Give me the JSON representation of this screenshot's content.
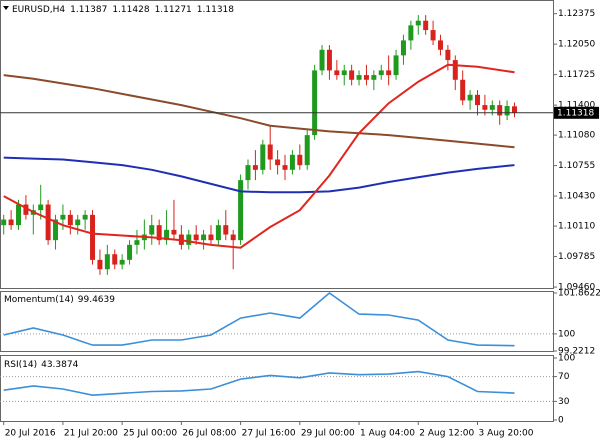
{
  "chart_data": [
    {
      "type": "candlestick",
      "symbol": "EURUSD,H4",
      "ohlc": [
        1.11387,
        1.11428,
        1.11271,
        1.11318
      ],
      "last_price": 1.11318,
      "up_color": "#1f9a1f",
      "down_color": "#d8231c",
      "xlim": [
        -0.5,
        74.2
      ],
      "ylim": [
        1.0945,
        1.1251
      ],
      "yticks": [
        {
          "value": 1.12375,
          "label": "1.12375"
        },
        {
          "value": 1.1205,
          "label": "1.12050"
        },
        {
          "value": 1.11725,
          "label": "1.11725"
        },
        {
          "value": 1.114,
          "label": "1.11400"
        },
        {
          "value": 1.1108,
          "label": "1.11080"
        },
        {
          "value": 1.10755,
          "label": "1.10755"
        },
        {
          "value": 1.1043,
          "label": "1.10430"
        },
        {
          "value": 1.1011,
          "label": "1.10110"
        },
        1.09785,
        {
          "value": 1.0946,
          "label": "1.09460"
        }
      ],
      "candles": {
        "open": [
          1.1012,
          1.1018,
          1.1012,
          1.1034,
          1.1023,
          1.1028,
          1.1034,
          1.0996,
          1.1018,
          1.1023,
          1.1012,
          1.1018,
          1.1023,
          1.0975,
          1.0965,
          1.0981,
          1.097,
          1.0975,
          1.0991,
          1.0996,
          1.1002,
          1.1012,
          1.0996,
          1.1007,
          1.1002,
          1.0991,
          1.1002,
          1.0996,
          1.1002,
          1.0996,
          1.1012,
          1.1002,
          1.0996,
          1.106,
          1.1076,
          1.1071,
          1.1098,
          1.1082,
          1.1076,
          1.1071,
          1.1087,
          1.1076,
          1.1108,
          1.1177,
          1.1199,
          1.1177,
          1.1172,
          1.1177,
          1.1167,
          1.1172,
          1.1167,
          1.1172,
          1.1177,
          1.1172,
          1.1193,
          1.1209,
          1.1225,
          1.123,
          1.122,
          1.1209,
          1.1199,
          1.1188,
          1.1167,
          1.1145,
          1.1151,
          1.114,
          1.1135,
          1.114,
          1.1129,
          1.11387
        ],
        "high": [
          1.1023,
          1.1028,
          1.1039,
          1.1044,
          1.1034,
          1.1055,
          1.1039,
          1.1023,
          1.1034,
          1.1028,
          1.1023,
          1.1028,
          1.1028,
          1.0986,
          1.0991,
          1.0986,
          1.0981,
          1.0996,
          1.1007,
          1.1018,
          1.1023,
          1.1018,
          1.1028,
          1.1039,
          1.1012,
          1.1007,
          1.1012,
          1.1007,
          1.1012,
          1.1018,
          1.1028,
          1.1007,
          1.1066,
          1.1082,
          1.1092,
          1.1103,
          1.1119,
          1.1092,
          1.1087,
          1.1092,
          1.1098,
          1.1113,
          1.1183,
          1.1204,
          1.1204,
          1.1188,
          1.1183,
          1.1183,
          1.1177,
          1.1183,
          1.1177,
          1.1183,
          1.1193,
          1.1199,
          1.1215,
          1.123,
          1.1236,
          1.1236,
          1.123,
          1.1215,
          1.1204,
          1.1193,
          1.1177,
          1.1156,
          1.1156,
          1.1151,
          1.1145,
          1.1145,
          1.1145,
          1.11428
        ],
        "low": [
          1.1002,
          1.1007,
          1.1007,
          1.1018,
          1.1002,
          1.1018,
          1.0991,
          1.0986,
          1.1007,
          1.1002,
          1.1002,
          1.1007,
          1.097,
          1.0959,
          1.0959,
          1.0965,
          1.0965,
          1.097,
          1.0981,
          1.0986,
          1.0991,
          1.0991,
          1.0991,
          1.0996,
          1.0986,
          1.0986,
          1.0991,
          1.0986,
          1.0991,
          1.0991,
          1.0996,
          1.0965,
          1.0991,
          1.105,
          1.106,
          1.1066,
          1.1071,
          1.1066,
          1.106,
          1.1066,
          1.1071,
          1.1071,
          1.1103,
          1.1172,
          1.1167,
          1.1167,
          1.1161,
          1.1161,
          1.1161,
          1.1161,
          1.1156,
          1.1167,
          1.1161,
          1.1167,
          1.1183,
          1.1199,
          1.1215,
          1.1215,
          1.1204,
          1.1193,
          1.1177,
          1.1156,
          1.114,
          1.1135,
          1.1129,
          1.1129,
          1.1129,
          1.1119,
          1.1124,
          1.11271
        ],
        "close": [
          1.1018,
          1.1012,
          1.1034,
          1.1023,
          1.1028,
          1.1034,
          1.0996,
          1.1018,
          1.1023,
          1.1012,
          1.1018,
          1.1023,
          1.0975,
          1.0965,
          1.0981,
          1.097,
          1.0975,
          1.0991,
          1.0996,
          1.1002,
          1.1012,
          1.0996,
          1.1007,
          1.1002,
          1.0991,
          1.1002,
          1.0996,
          1.1002,
          1.0996,
          1.1012,
          1.1002,
          1.0996,
          1.106,
          1.1076,
          1.1071,
          1.1098,
          1.1082,
          1.1076,
          1.1071,
          1.1087,
          1.1076,
          1.1108,
          1.1177,
          1.1199,
          1.1177,
          1.1172,
          1.1177,
          1.1167,
          1.1172,
          1.1167,
          1.1172,
          1.1177,
          1.1172,
          1.1193,
          1.1209,
          1.1225,
          1.123,
          1.122,
          1.1209,
          1.1199,
          1.1188,
          1.1167,
          1.1145,
          1.1151,
          1.114,
          1.1135,
          1.114,
          1.1129,
          1.1139,
          1.11318
        ]
      },
      "series": [
        {
          "color": "#8b4a2b",
          "x": [
            0,
            4,
            8,
            12,
            16,
            20,
            24,
            28,
            32,
            36,
            40,
            44,
            48,
            52,
            56,
            60,
            64,
            69
          ],
          "values": [
            1.1172,
            1.1168,
            1.1163,
            1.1158,
            1.1152,
            1.1146,
            1.114,
            1.1133,
            1.1126,
            1.1118,
            1.1115,
            1.1112,
            1.111,
            1.1108,
            1.1105,
            1.1102,
            1.1099,
            1.1095
          ]
        },
        {
          "color": "#1f2fb5",
          "x": [
            0,
            4,
            8,
            12,
            16,
            20,
            24,
            28,
            32,
            36,
            40,
            44,
            48,
            52,
            56,
            60,
            64,
            69
          ],
          "values": [
            1.1084,
            1.1083,
            1.1082,
            1.1079,
            1.1076,
            1.1071,
            1.1064,
            1.1056,
            1.1048,
            1.1047,
            1.1047,
            1.1048,
            1.1052,
            1.1058,
            1.1063,
            1.1068,
            1.1072,
            1.1076
          ]
        },
        {
          "color": "#e0261d",
          "x": [
            0,
            4,
            8,
            12,
            16,
            20,
            24,
            28,
            32,
            36,
            40,
            44,
            48,
            52,
            56,
            60,
            64,
            69
          ],
          "values": [
            1.1043,
            1.1026,
            1.1012,
            1.1003,
            1.1001,
            1.0999,
            1.0996,
            1.0991,
            1.0988,
            1.101,
            1.1028,
            1.1065,
            1.111,
            1.1142,
            1.1165,
            1.1183,
            1.1181,
            1.1175
          ]
        }
      ]
    },
    {
      "type": "line",
      "title": "Momentum(14)",
      "last_value": 99.4639,
      "xlim": [
        -0.5,
        74.2
      ],
      "ylim": [
        99.2212,
        101.8622
      ],
      "yticks": [
        101.8622,
        100,
        99.2212
      ],
      "levels": [
        100
      ],
      "series": [
        {
          "color": "#3b8fd9",
          "x": [
            0,
            4,
            8,
            12,
            16,
            20,
            24,
            28,
            32,
            36,
            40,
            44,
            48,
            52,
            56,
            60,
            64,
            69
          ],
          "values": [
            99.95,
            100.27,
            99.95,
            99.49,
            99.49,
            99.72,
            99.72,
            99.95,
            100.72,
            100.95,
            100.72,
            101.86,
            100.9,
            100.86,
            100.63,
            99.72,
            99.49,
            99.4639
          ]
        }
      ]
    },
    {
      "type": "line",
      "title": "RSI(14)",
      "last_value": 43.3874,
      "xlim": [
        -0.5,
        74.2
      ],
      "ylim": [
        0,
        100
      ],
      "yticks": [
        100,
        70,
        30,
        0
      ],
      "levels": [
        70,
        30
      ],
      "xticks": [
        {
          "value": 0,
          "label": "20 Jul 2016"
        },
        {
          "value": 8,
          "label": "21 Jul 20:00"
        },
        {
          "value": 16,
          "label": "25 Jul 00:00"
        },
        {
          "value": 24,
          "label": "26 Jul 08:00"
        },
        {
          "value": 32,
          "label": "27 Jul 16:00"
        },
        {
          "value": 40,
          "label": "29 Jul 00:00"
        },
        {
          "value": 48,
          "label": "1 Aug 04:00"
        },
        {
          "value": 56,
          "label": "2 Aug 12:00"
        },
        {
          "value": 64,
          "label": "3 Aug 20:00"
        }
      ],
      "series": [
        {
          "color": "#3b8fd9",
          "x": [
            0,
            4,
            8,
            12,
            16,
            20,
            24,
            28,
            32,
            36,
            40,
            44,
            48,
            52,
            56,
            60,
            64,
            69
          ],
          "values": [
            48,
            55,
            50,
            40,
            43,
            46,
            47,
            50,
            66,
            72,
            68,
            76,
            73,
            74,
            78,
            70,
            46,
            43.3874
          ]
        }
      ]
    }
  ]
}
